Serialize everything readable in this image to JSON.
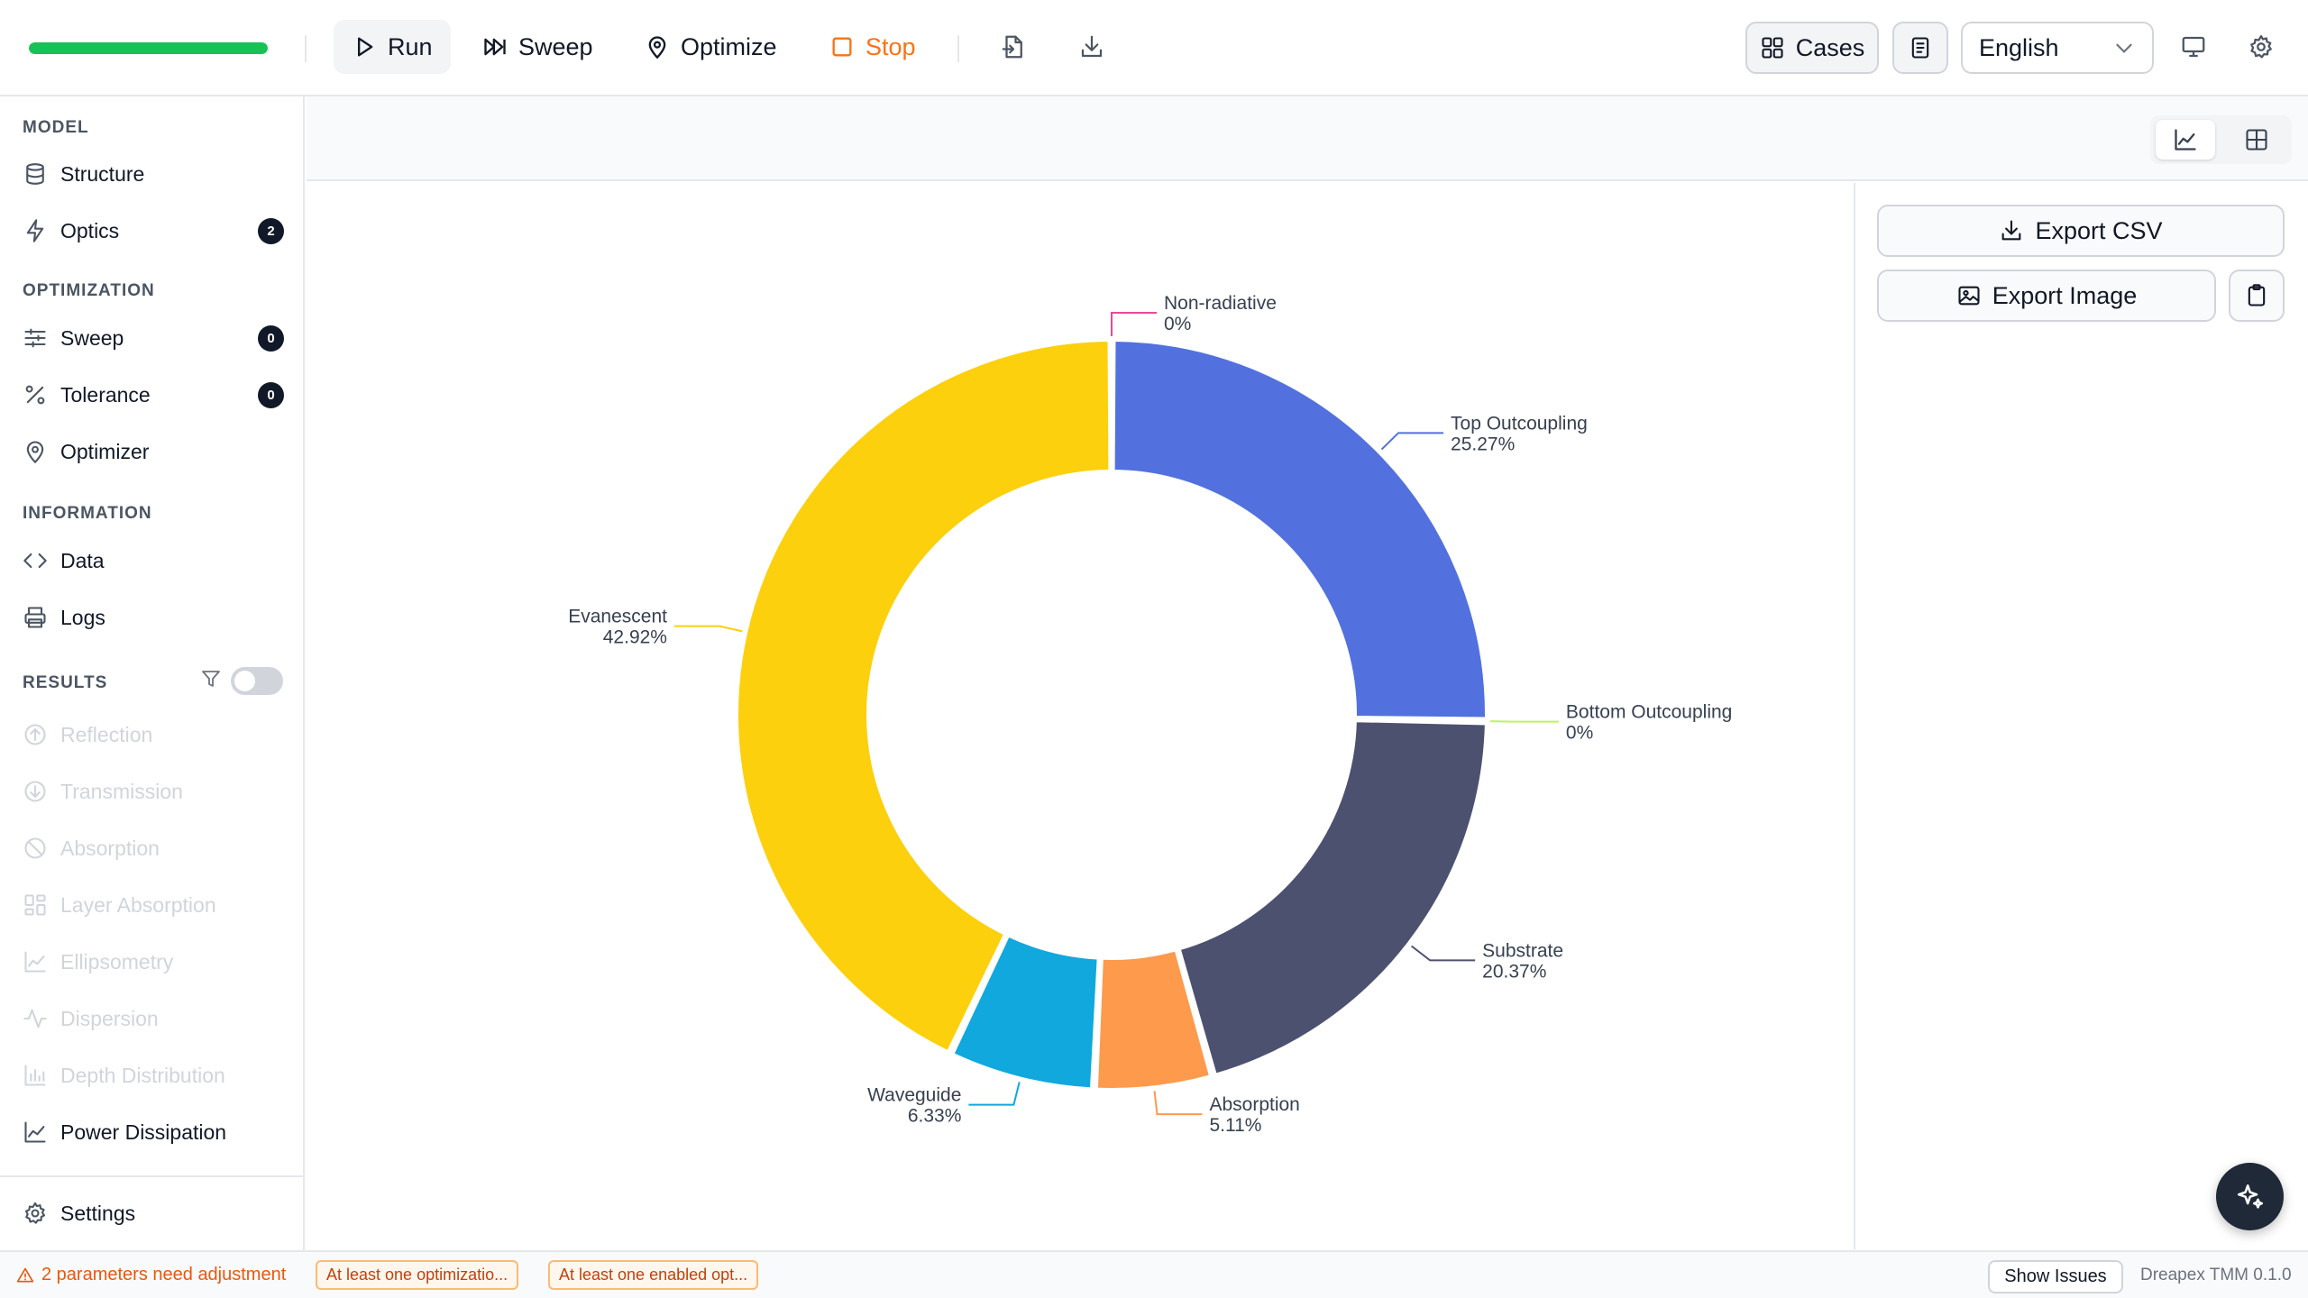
{
  "toolbar": {
    "progress_fraction": 1.0,
    "run_label": "Run",
    "sweep_label": "Sweep",
    "optimize_label": "Optimize",
    "stop_label": "Stop",
    "cases_label": "Cases",
    "language": "English",
    "accent_color": "#16c256",
    "stop_color": "#f97316"
  },
  "sidebar": {
    "model_title": "MODEL",
    "structure_label": "Structure",
    "optics_label": "Optics",
    "optics_badge": "2",
    "optimization_title": "OPTIMIZATION",
    "sweep_label": "Sweep",
    "sweep_badge": "0",
    "tolerance_label": "Tolerance",
    "tolerance_badge": "0",
    "optimizer_label": "Optimizer",
    "information_title": "INFORMATION",
    "data_label": "Data",
    "logs_label": "Logs",
    "results_title": "RESULTS",
    "results": {
      "reflection": "Reflection",
      "transmission": "Transmission",
      "absorption": "Absorption",
      "layer_absorption": "Layer Absorption",
      "ellipsometry": "Ellipsometry",
      "dispersion": "Dispersion",
      "depth_distribution": "Depth Distribution",
      "power_dissipation": "Power Dissipation"
    },
    "settings_label": "Settings"
  },
  "panel": {
    "export_csv": "Export CSV",
    "export_image": "Export Image"
  },
  "chart_data": {
    "type": "pie",
    "variant": "donut",
    "slices": [
      {
        "name": "Non-radiative",
        "value": 0,
        "label": "0%",
        "color": "#ec4899"
      },
      {
        "name": "Top Outcoupling",
        "value": 25.27,
        "label": "25.27%",
        "color": "#5271df"
      },
      {
        "name": "Bottom Outcoupling",
        "value": 0,
        "label": "0%",
        "color": "#bef264"
      },
      {
        "name": "Substrate",
        "value": 20.37,
        "label": "20.37%",
        "color": "#4d5170"
      },
      {
        "name": "Absorption",
        "value": 5.11,
        "label": "5.11%",
        "color": "#fd9a4c"
      },
      {
        "name": "Waveguide",
        "value": 6.33,
        "label": "6.33%",
        "color": "#11a8dd"
      },
      {
        "name": "Evanescent",
        "value": 42.92,
        "label": "42.92%",
        "color": "#fcd00c"
      }
    ]
  },
  "status": {
    "warning": "2 parameters need adjustment",
    "chip1": "At least one optimizatio...",
    "chip2": "At least one enabled opt...",
    "show_issues": "Show Issues",
    "version": "Dreapex TMM 0.1.0"
  }
}
